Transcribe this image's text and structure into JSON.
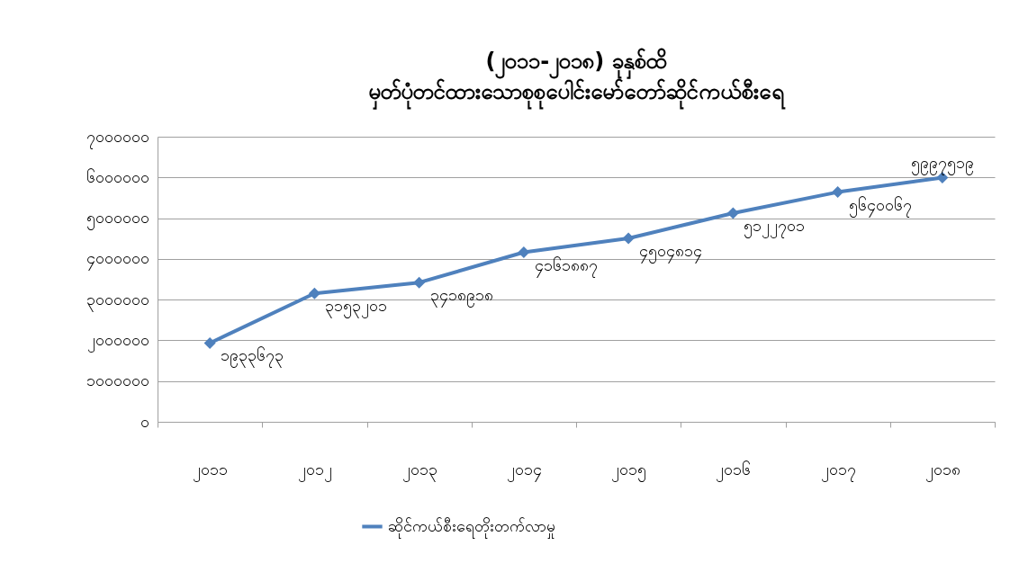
{
  "chart_data": {
    "type": "line",
    "title": "(၂၀၁၁-၂၀၁၈) ခုနှစ်ထိ\nမှတ်ပုံတင်ထားသောစုစုပေါင်းမော်တော်ဆိုင်ကယ်စီးရေ",
    "categories": [
      "၂၀၁၁",
      "၂၀၁၂",
      "၂၀၁၃",
      "၂၀၁၄",
      "၂၀၁၅",
      "၂၀၁၆",
      "၂၀၁၇",
      "၂၀၁၈"
    ],
    "series": [
      {
        "name": "ဆိုင်ကယ်စီးရေတိုးတက်လာမှု",
        "color": "#4f81bd",
        "values": [
          1933673,
          3153201,
          3418918,
          4161887,
          4504814,
          5122701,
          5640067,
          5997519
        ],
        "value_labels": [
          "၁၉၃၃၆၇၃",
          "၃၁၅၃၂၀၁",
          "၃၄၁၈၉၁၈",
          "၄၁၆၁၈၈၇",
          "၄၅၀၄၈၁၄",
          "၅၁၂၂၇၀၁",
          "၅၆၄၀၀၆၇",
          "၅၉၉၇၅၁၉"
        ]
      }
    ],
    "ylim": [
      0,
      7000000
    ],
    "yticks": [
      {
        "value": 0,
        "label": "၀"
      },
      {
        "value": 1000000,
        "label": "၁၀၀၀၀၀၀"
      },
      {
        "value": 2000000,
        "label": "၂၀၀၀၀၀၀"
      },
      {
        "value": 3000000,
        "label": "၃၀၀၀၀၀၀"
      },
      {
        "value": 4000000,
        "label": "၄၀၀၀၀၀၀"
      },
      {
        "value": 5000000,
        "label": "၅၀၀၀၀၀၀"
      },
      {
        "value": 6000000,
        "label": "၆၀၀၀၀၀၀"
      },
      {
        "value": 7000000,
        "label": "၇၀၀၀၀၀၀"
      }
    ],
    "grid": "y",
    "legend": "bottom",
    "marker": "diamond",
    "line_style": "solid"
  }
}
